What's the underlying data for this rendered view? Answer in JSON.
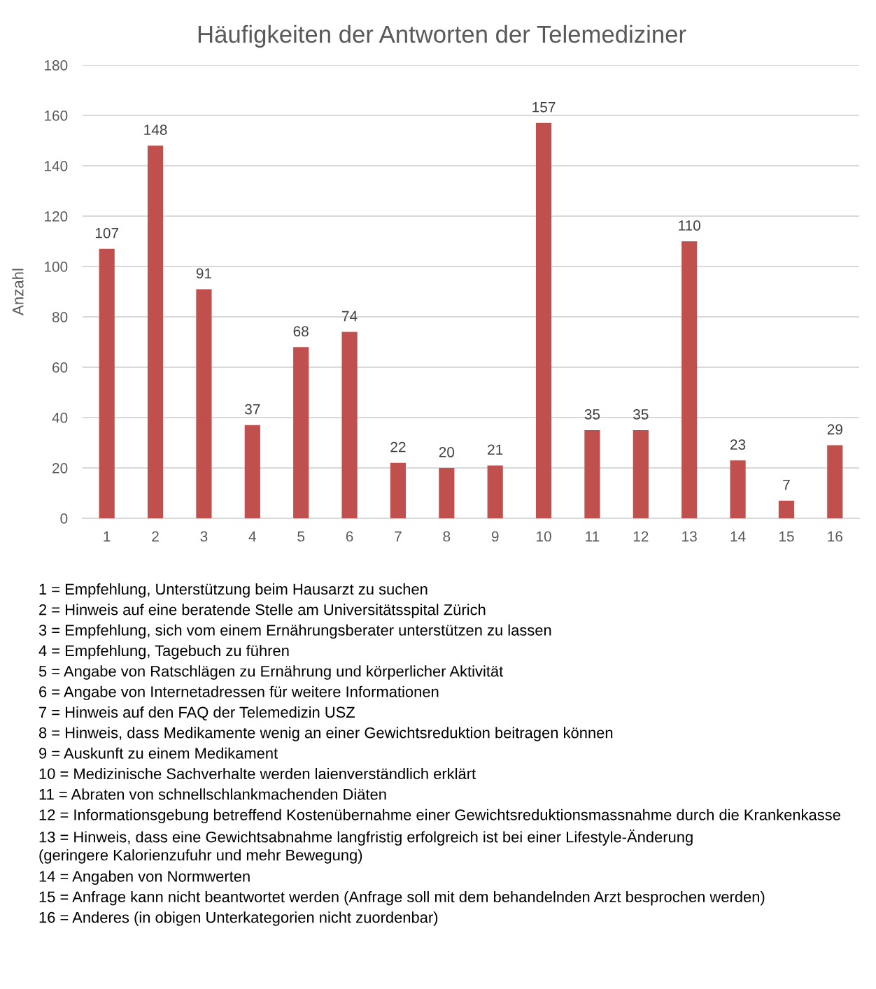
{
  "chart_data": {
    "type": "bar",
    "title": "Häufigkeiten der Antworten der Telemediziner",
    "ylabel": "Anzahl",
    "categories": [
      "1",
      "2",
      "3",
      "4",
      "5",
      "6",
      "7",
      "8",
      "9",
      "10",
      "11",
      "12",
      "13",
      "14",
      "15",
      "16"
    ],
    "values": [
      107,
      148,
      91,
      37,
      68,
      74,
      22,
      20,
      21,
      157,
      35,
      35,
      110,
      23,
      7,
      29
    ],
    "color": "#c0504d",
    "ylim": [
      0,
      180
    ],
    "yticks": [
      0,
      20,
      40,
      60,
      80,
      100,
      120,
      140,
      160,
      180
    ],
    "grid": "y",
    "data_labels": true,
    "annotations": [
      "1 = Empfehlung, Unterstützung beim Hausarzt zu suchen",
      "2 = Hinweis auf eine beratende Stelle am Universitätsspital Zürich",
      "3 = Empfehlung, sich vom einem Ernährungsberater unterstützen zu lassen",
      "4 = Empfehlung, Tagebuch zu führen",
      "5 = Angabe von Ratschlägen zu Ernährung und körperlicher Aktivität",
      "6 = Angabe von Internetadressen für weitere Informationen",
      "7 = Hinweis auf den FAQ der Telemedizin USZ",
      "8 = Hinweis, dass Medikamente wenig an einer Gewichtsreduktion beitragen können",
      "9 = Auskunft zu einem Medikament",
      "10 = Medizinische Sachverhalte werden laienverständlich erklärt",
      "11 = Abraten von schnellschlankmachenden Diäten",
      "12 = Informationsgebung betreffend Kostenübernahme einer Gewichtsreduktionsmassnahme durch die Krankenkasse",
      "13 = Hinweis, dass eine Gewichtsabnahme langfristig erfolgreich ist bei einer Lifestyle-Änderung\n(geringere Kalorienzufuhr und mehr Bewegung)",
      "14 = Angaben von Normwerten",
      "15 = Anfrage kann nicht beantwortet werden (Anfrage soll mit dem behandelnden Arzt besprochen werden)",
      "16 = Anderes (in obigen Unterkategorien nicht zuordenbar)"
    ]
  }
}
